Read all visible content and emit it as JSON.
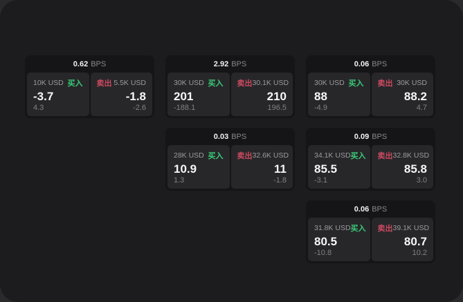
{
  "labels": {
    "bps_unit": "BPS",
    "buy": "买入",
    "sell": "卖出"
  },
  "colors": {
    "page_background": "#2a2a2c",
    "window_surface": "#1c1c1e",
    "card_background": "#151517",
    "panel_background": "#27272a",
    "buy_green": "#3bcb77",
    "sell_red": "#cc4a60"
  },
  "cards": [
    {
      "bps": "0.62",
      "buy": {
        "amount": "10K USD",
        "value": "-3.7",
        "sub": "4.3"
      },
      "sell": {
        "amount": "5.5K USD",
        "value": "-1.8",
        "sub": "-2.6"
      }
    },
    {
      "bps": "2.92",
      "buy": {
        "amount": "30K USD",
        "value": "201",
        "sub": "-188.1"
      },
      "sell": {
        "amount": "30.1K USD",
        "value": "210",
        "sub": "196.5"
      }
    },
    {
      "bps": "0.06",
      "buy": {
        "amount": "30K USD",
        "value": "88",
        "sub": "-4.9"
      },
      "sell": {
        "amount": "30K USD",
        "value": "88.2",
        "sub": "4.7"
      }
    },
    {
      "bps": "0.03",
      "buy": {
        "amount": "28K USD",
        "value": "10.9",
        "sub": "1.3"
      },
      "sell": {
        "amount": "32.6K USD",
        "value": "11",
        "sub": "-1.8"
      }
    },
    {
      "bps": "0.09",
      "buy": {
        "amount": "34.1K USD",
        "value": "85.5",
        "sub": "-3.1"
      },
      "sell": {
        "amount": "32.8K USD",
        "value": "85.8",
        "sub": "3.0"
      }
    },
    {
      "bps": "0.06",
      "buy": {
        "amount": "31.8K USD",
        "value": "80.5",
        "sub": "-10.8"
      },
      "sell": {
        "amount": "39.1K USD",
        "value": "80.7",
        "sub": "10.2"
      }
    }
  ]
}
